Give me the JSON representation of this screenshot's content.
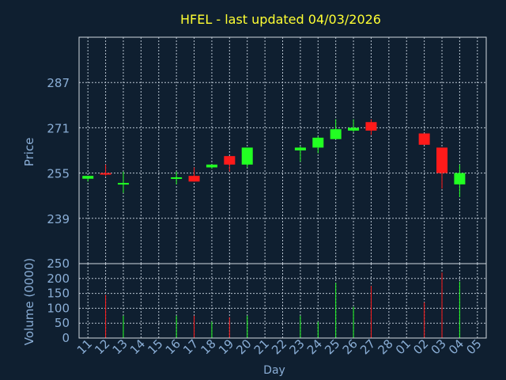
{
  "colors": {
    "background": "#0f1f30",
    "title": "#ffff33",
    "axis_text": "#8aaed6",
    "axis_line": "#d0d8e0",
    "grid": "#b8c4d0",
    "up": "#22ff22",
    "down": "#ff1a1a"
  },
  "chart_data": {
    "type": "candlestick",
    "title": "HFEL - last updated 04/03/2026",
    "xlabel": "Day",
    "price_panel": {
      "ylabel": "Price",
      "ylim": [
        223,
        303
      ],
      "yticks": [
        239,
        255,
        271,
        287
      ],
      "grid": true
    },
    "volume_panel": {
      "ylabel": "Volume (0000)",
      "ylim": [
        0,
        250
      ],
      "yticks": [
        0,
        50,
        100,
        150,
        200,
        250
      ],
      "grid": true
    },
    "x_ticks": [
      "11",
      "12",
      "13",
      "14",
      "15",
      "16",
      "17",
      "18",
      "19",
      "20",
      "21",
      "22",
      "23",
      "24",
      "25",
      "26",
      "27",
      "28",
      "01",
      "02",
      "03",
      "04",
      "05"
    ],
    "candles": [
      {
        "day": "11",
        "open": 253,
        "high": 254,
        "low": 252,
        "close": 254,
        "volume": 0
      },
      {
        "day": "12",
        "open": 255,
        "high": 258,
        "low": 254,
        "close": 254.5,
        "volume": 145
      },
      {
        "day": "13",
        "open": 251,
        "high": 255.5,
        "low": 248,
        "close": 251.5,
        "volume": 75
      },
      {
        "day": "16",
        "open": 253,
        "high": 255.5,
        "low": 251,
        "close": 253.5,
        "volume": 75
      },
      {
        "day": "17",
        "open": 254,
        "high": 257,
        "low": 252,
        "close": 252,
        "volume": 75
      },
      {
        "day": "18",
        "open": 257,
        "high": 258,
        "low": 256.5,
        "close": 258,
        "volume": 55
      },
      {
        "day": "19",
        "open": 261,
        "high": 261,
        "low": 255.5,
        "close": 258,
        "volume": 70
      },
      {
        "day": "20",
        "open": 258,
        "high": 264,
        "low": 257,
        "close": 264,
        "volume": 75
      },
      {
        "day": "23",
        "open": 263,
        "high": 264.5,
        "low": 259,
        "close": 264,
        "volume": 75
      },
      {
        "day": "24",
        "open": 264,
        "high": 268,
        "low": 262,
        "close": 267.5,
        "volume": 55
      },
      {
        "day": "25",
        "open": 267,
        "high": 274,
        "low": 267,
        "close": 270.5,
        "volume": 185
      },
      {
        "day": "26",
        "open": 270,
        "high": 274,
        "low": 269.5,
        "close": 271,
        "volume": 105
      },
      {
        "day": "27",
        "open": 273,
        "high": 274,
        "low": 268.5,
        "close": 270,
        "volume": 175
      },
      {
        "day": "02",
        "open": 269,
        "high": 269,
        "low": 265,
        "close": 265,
        "volume": 120
      },
      {
        "day": "03",
        "open": 264,
        "high": 264,
        "low": 249.5,
        "close": 255,
        "volume": 220
      },
      {
        "day": "04",
        "open": 251,
        "high": 258,
        "low": 246.5,
        "close": 255,
        "volume": 190
      }
    ]
  }
}
